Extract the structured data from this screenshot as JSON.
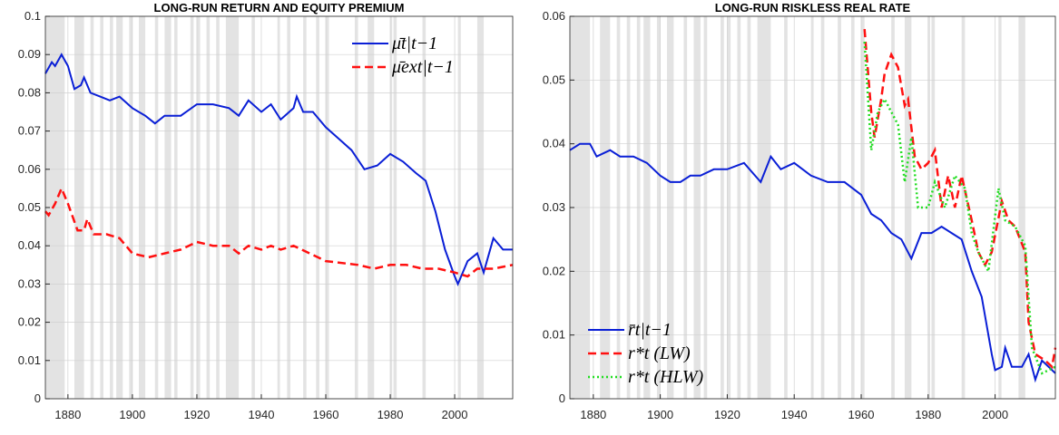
{
  "chart_data": [
    {
      "type": "line",
      "title": "LONG-RUN RETURN AND EQUITY PREMIUM",
      "xlim": [
        1873,
        2018
      ],
      "xticks": [
        1880,
        1900,
        1920,
        1940,
        1960,
        1980,
        2000
      ],
      "ylim": [
        0,
        0.1
      ],
      "yticks": [
        0,
        0.01,
        0.02,
        0.03,
        0.04,
        0.05,
        0.06,
        0.07,
        0.08,
        0.09,
        0.1
      ],
      "grid": true,
      "legend": "top-right",
      "shading_color": "#e3e3e3",
      "shaded_periods": [
        [
          1873,
          1879
        ],
        [
          1882,
          1885
        ],
        [
          1887,
          1888
        ],
        [
          1890,
          1891
        ],
        [
          1893,
          1894
        ],
        [
          1895,
          1897
        ],
        [
          1899,
          1900
        ],
        [
          1902,
          1904
        ],
        [
          1907,
          1908
        ],
        [
          1910,
          1912
        ],
        [
          1913,
          1914
        ],
        [
          1918,
          1919
        ],
        [
          1920,
          1921
        ],
        [
          1923,
          1924
        ],
        [
          1926,
          1927
        ],
        [
          1929,
          1933
        ],
        [
          1937,
          1938
        ],
        [
          1945,
          1945.8
        ],
        [
          1948,
          1949
        ],
        [
          1953,
          1954
        ],
        [
          1957,
          1958
        ],
        [
          1960,
          1961
        ],
        [
          1969,
          1970
        ],
        [
          1973,
          1975
        ],
        [
          1980,
          1980.6
        ],
        [
          1981,
          1982
        ],
        [
          1990,
          1991
        ],
        [
          2001,
          2001.9
        ],
        [
          2007,
          2009
        ]
      ],
      "series": [
        {
          "name": "μ̄t|t−1",
          "color": "#0a1fd6",
          "dash": "solid",
          "x": [
            1873,
            1875,
            1876,
            1878,
            1880,
            1882,
            1884,
            1885,
            1887,
            1890,
            1893,
            1896,
            1900,
            1904,
            1907,
            1910,
            1915,
            1920,
            1925,
            1930,
            1933,
            1936,
            1940,
            1943,
            1946,
            1950,
            1951,
            1953,
            1956,
            1960,
            1964,
            1968,
            1972,
            1976,
            1980,
            1984,
            1988,
            1991,
            1994,
            1997,
            2000,
            2001,
            2004,
            2007,
            2009,
            2012,
            2015,
            2018
          ],
          "values": [
            0.085,
            0.088,
            0.087,
            0.09,
            0.087,
            0.081,
            0.082,
            0.084,
            0.08,
            0.079,
            0.078,
            0.079,
            0.076,
            0.074,
            0.072,
            0.074,
            0.074,
            0.077,
            0.077,
            0.076,
            0.074,
            0.078,
            0.075,
            0.077,
            0.073,
            0.076,
            0.079,
            0.075,
            0.075,
            0.071,
            0.068,
            0.065,
            0.06,
            0.061,
            0.064,
            0.062,
            0.059,
            0.057,
            0.049,
            0.039,
            0.032,
            0.03,
            0.036,
            0.038,
            0.033,
            0.042,
            0.039,
            0.039
          ]
        },
        {
          "name": "μ̄ext|t−1",
          "color": "#ff1010",
          "dash": "dashed",
          "x": [
            1873,
            1874,
            1876,
            1878,
            1880,
            1883,
            1885,
            1886,
            1888,
            1892,
            1896,
            1900,
            1905,
            1910,
            1915,
            1920,
            1925,
            1930,
            1933,
            1936,
            1940,
            1943,
            1946,
            1950,
            1955,
            1960,
            1970,
            1975,
            1980,
            1985,
            1990,
            1995,
            2000,
            2004,
            2007,
            2012,
            2018
          ],
          "values": [
            0.049,
            0.048,
            0.051,
            0.055,
            0.051,
            0.044,
            0.044,
            0.047,
            0.043,
            0.043,
            0.042,
            0.038,
            0.037,
            0.038,
            0.039,
            0.041,
            0.04,
            0.04,
            0.038,
            0.04,
            0.039,
            0.04,
            0.039,
            0.04,
            0.038,
            0.036,
            0.035,
            0.034,
            0.035,
            0.035,
            0.034,
            0.034,
            0.033,
            0.032,
            0.034,
            0.034,
            0.035
          ]
        }
      ]
    },
    {
      "type": "line",
      "title": "LONG-RUN RISKLESS REAL RATE",
      "xlim": [
        1873,
        2018
      ],
      "xticks": [
        1880,
        1900,
        1920,
        1940,
        1960,
        1980,
        2000
      ],
      "ylim": [
        0,
        0.06
      ],
      "yticks": [
        0,
        0.01,
        0.02,
        0.03,
        0.04,
        0.05,
        0.06
      ],
      "grid": true,
      "legend": "bottom-left",
      "shading_color": "#e3e3e3",
      "shaded_periods": [
        [
          1873,
          1879
        ],
        [
          1882,
          1885
        ],
        [
          1887,
          1888
        ],
        [
          1890,
          1891
        ],
        [
          1893,
          1894
        ],
        [
          1895,
          1897
        ],
        [
          1899,
          1900
        ],
        [
          1902,
          1904
        ],
        [
          1907,
          1908
        ],
        [
          1910,
          1912
        ],
        [
          1913,
          1914
        ],
        [
          1918,
          1919
        ],
        [
          1920,
          1921
        ],
        [
          1923,
          1924
        ],
        [
          1926,
          1927
        ],
        [
          1929,
          1933
        ],
        [
          1937,
          1938
        ],
        [
          1945,
          1945.8
        ],
        [
          1948,
          1949
        ],
        [
          1953,
          1954
        ],
        [
          1957,
          1958
        ],
        [
          1960,
          1961
        ],
        [
          1969,
          1970
        ],
        [
          1973,
          1975
        ],
        [
          1980,
          1980.6
        ],
        [
          1981,
          1982
        ],
        [
          1990,
          1991
        ],
        [
          2001,
          2001.9
        ],
        [
          2007,
          2009
        ]
      ],
      "series": [
        {
          "name": "r̄t|t−1",
          "color": "#0a1fd6",
          "dash": "solid",
          "x": [
            1873,
            1876,
            1879,
            1881,
            1885,
            1888,
            1892,
            1896,
            1900,
            1903,
            1906,
            1909,
            1912,
            1916,
            1920,
            1925,
            1930,
            1933,
            1936,
            1940,
            1945,
            1950,
            1955,
            1960,
            1963,
            1966,
            1969,
            1972,
            1975,
            1978,
            1981,
            1984,
            1987,
            1990,
            1993,
            1996,
            1999,
            2000,
            2002,
            2003,
            2005,
            2008,
            2010,
            2012,
            2014,
            2018
          ],
          "values": [
            0.039,
            0.04,
            0.04,
            0.038,
            0.039,
            0.038,
            0.038,
            0.037,
            0.035,
            0.034,
            0.034,
            0.035,
            0.035,
            0.036,
            0.036,
            0.037,
            0.034,
            0.038,
            0.036,
            0.037,
            0.035,
            0.034,
            0.034,
            0.032,
            0.029,
            0.028,
            0.026,
            0.025,
            0.022,
            0.026,
            0.026,
            0.027,
            0.026,
            0.025,
            0.02,
            0.016,
            0.007,
            0.0045,
            0.005,
            0.008,
            0.005,
            0.005,
            0.007,
            0.003,
            0.006,
            0.004
          ]
        },
        {
          "name": "r*t (LW)",
          "color": "#ff1010",
          "dash": "dashed",
          "x": [
            1961,
            1963,
            1964,
            1966,
            1967,
            1969,
            1971,
            1973,
            1974,
            1976,
            1978,
            1980,
            1982,
            1984,
            1986,
            1988,
            1990,
            1993,
            1995,
            1997,
            1999,
            2002,
            2004,
            2006,
            2009,
            2010,
            2012,
            2015,
            2017,
            2018
          ],
          "values": [
            0.058,
            0.045,
            0.041,
            0.047,
            0.051,
            0.054,
            0.052,
            0.046,
            0.047,
            0.038,
            0.036,
            0.037,
            0.039,
            0.03,
            0.035,
            0.03,
            0.035,
            0.028,
            0.023,
            0.021,
            0.023,
            0.031,
            0.028,
            0.027,
            0.023,
            0.012,
            0.007,
            0.006,
            0.005,
            0.008
          ]
        },
        {
          "name": "r*t (HLW)",
          "color": "#22dd22",
          "dash": "dotted",
          "x": [
            1961,
            1963,
            1965,
            1967,
            1969,
            1971,
            1973,
            1975,
            1977,
            1980,
            1982,
            1985,
            1988,
            1991,
            1993,
            1995,
            1998,
            2001,
            2003,
            2006,
            2009,
            2011,
            2014,
            2018
          ],
          "values": [
            0.056,
            0.039,
            0.045,
            0.047,
            0.045,
            0.043,
            0.034,
            0.041,
            0.03,
            0.03,
            0.034,
            0.03,
            0.035,
            0.033,
            0.026,
            0.023,
            0.02,
            0.033,
            0.028,
            0.027,
            0.024,
            0.008,
            0.004,
            0.005
          ]
        }
      ]
    }
  ]
}
